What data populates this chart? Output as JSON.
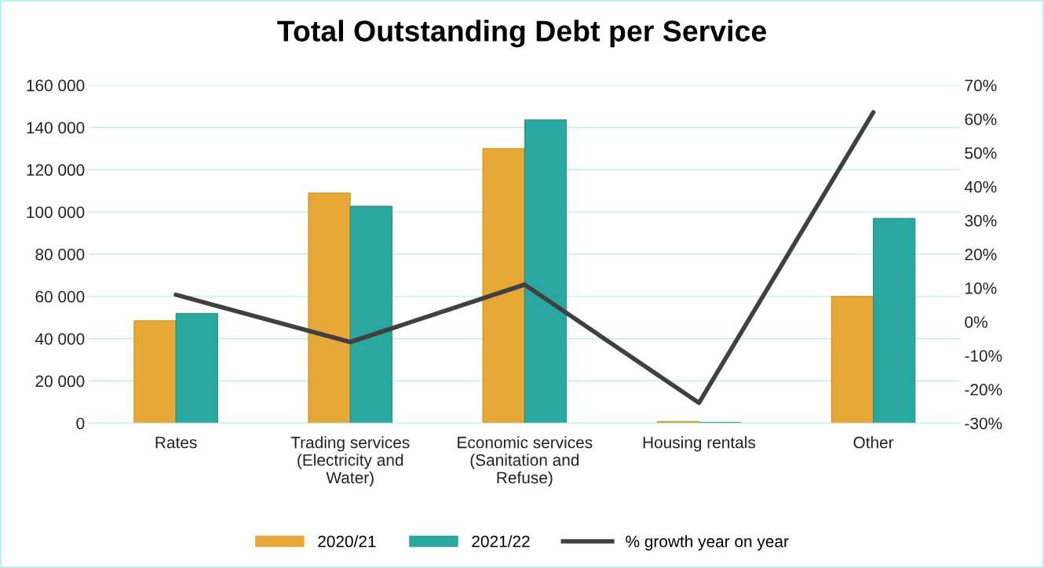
{
  "chart_data": {
    "type": "bar",
    "title": "Total Outstanding Debt per Service",
    "categories": [
      "Rates",
      "Trading services\n(Electricity and\nWater)",
      "Economic services\n(Sanitation and\nRefuse)",
      "Housing rentals",
      "Other"
    ],
    "series": [
      {
        "name": "2020/21",
        "color": "#e8a838",
        "values": [
          48500,
          109000,
          130000,
          800,
          60000
        ]
      },
      {
        "name": "2021/22",
        "color": "#2aa7a0",
        "values": [
          52000,
          102700,
          143600,
          400,
          97000
        ]
      },
      {
        "name": "% growth year on year",
        "type": "line",
        "axis": "y2",
        "color": "#404040",
        "values": [
          8,
          -6,
          11,
          -24,
          62
        ]
      }
    ],
    "ylim": [
      0,
      160000
    ],
    "yticks": [
      {
        "value": 0,
        "label": "0"
      },
      {
        "value": 20000,
        "label": "20 000"
      },
      {
        "value": 40000,
        "label": "40 000"
      },
      {
        "value": 60000,
        "label": "60 000"
      },
      {
        "value": 80000,
        "label": "80 000"
      },
      {
        "value": 100000,
        "label": "100 000"
      },
      {
        "value": 120000,
        "label": "120 000"
      },
      {
        "value": 140000,
        "label": "140 000"
      },
      {
        "value": 160000,
        "label": "160 000"
      }
    ],
    "y2lim": [
      -30,
      70
    ],
    "y2ticks": [
      {
        "value": -30,
        "label": "-30%"
      },
      {
        "value": -20,
        "label": "-20%"
      },
      {
        "value": -10,
        "label": "-10%"
      },
      {
        "value": 0,
        "label": "0%"
      },
      {
        "value": 10,
        "label": "10%"
      },
      {
        "value": 20,
        "label": "20%"
      },
      {
        "value": 30,
        "label": "30%"
      },
      {
        "value": 40,
        "label": "40%"
      },
      {
        "value": 50,
        "label": "50%"
      },
      {
        "value": 60,
        "label": "60%"
      },
      {
        "value": 70,
        "label": "70%"
      }
    ],
    "grid": "y",
    "legend": "bottom",
    "marker": "none",
    "line_style": "solid"
  }
}
